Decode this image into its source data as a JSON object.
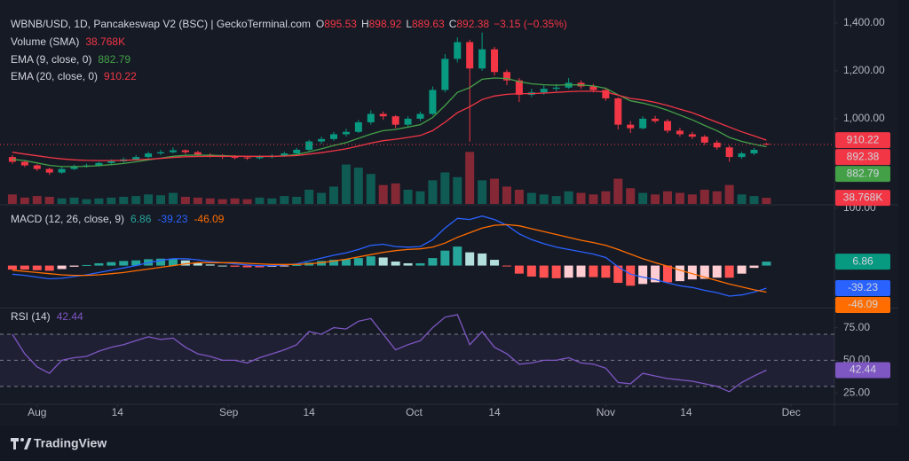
{
  "chart_data": {
    "type": "candlestick",
    "title": "WBNB/USD, 1D, Pancakeswap V2 (BSC) | GeckoTerminal.com",
    "ohlc_keys": [
      "O",
      "H",
      "L",
      "C"
    ],
    "change_label": "−3.15 (−0.35%)",
    "up_color": "#089981",
    "down_color": "#f23645",
    "x": [
      0,
      2,
      4,
      6,
      8,
      10,
      12,
      14,
      16,
      18,
      20,
      22,
      24,
      26,
      28,
      30,
      32,
      34,
      36,
      38,
      40,
      42,
      44,
      46,
      48,
      50,
      52,
      54,
      56,
      58,
      60,
      62,
      64,
      66,
      68,
      70,
      72,
      74,
      76,
      78,
      80,
      82,
      84,
      86,
      88,
      90,
      92,
      94,
      96,
      98,
      100,
      102,
      104,
      106,
      108,
      110,
      112,
      114,
      116,
      118,
      120,
      122
    ],
    "xlim": [
      -2,
      133
    ],
    "xticks": [
      {
        "value": 4,
        "label": "Aug"
      },
      {
        "value": 17,
        "label": "14"
      },
      {
        "value": 35,
        "label": "Sep"
      },
      {
        "value": 48,
        "label": "14"
      },
      {
        "value": 65,
        "label": "Oct"
      },
      {
        "value": 78,
        "label": "14"
      },
      {
        "value": 96,
        "label": "Nov"
      },
      {
        "value": 109,
        "label": "14"
      },
      {
        "value": 126,
        "label": "Dec"
      }
    ],
    "ylim": [
      644,
      1496
    ],
    "yticks": [
      {
        "value": 1400,
        "label": "1,400.00"
      },
      {
        "value": 1200,
        "label": "1,200.00"
      },
      {
        "value": 1000,
        "label": "1,000.00"
      }
    ],
    "ohlc": [
      [
        840,
        848,
        812,
        820
      ],
      [
        820,
        826,
        798,
        805
      ],
      [
        805,
        810,
        782,
        790
      ],
      [
        790,
        795,
        765,
        775
      ],
      [
        775,
        798,
        770,
        790
      ],
      [
        790,
        808,
        785,
        800
      ],
      [
        800,
        812,
        795,
        805
      ],
      [
        805,
        820,
        800,
        815
      ],
      [
        815,
        830,
        808,
        822
      ],
      [
        822,
        838,
        815,
        830
      ],
      [
        830,
        848,
        825,
        840
      ],
      [
        840,
        862,
        835,
        855
      ],
      [
        855,
        870,
        848,
        860
      ],
      [
        860,
        880,
        855,
        868
      ],
      [
        868,
        872,
        852,
        860
      ],
      [
        860,
        866,
        842,
        850
      ],
      [
        850,
        856,
        838,
        845
      ],
      [
        845,
        852,
        832,
        840
      ],
      [
        840,
        848,
        830,
        838
      ],
      [
        838,
        845,
        828,
        835
      ],
      [
        835,
        848,
        830,
        840
      ],
      [
        840,
        852,
        835,
        845
      ],
      [
        845,
        862,
        840,
        855
      ],
      [
        855,
        878,
        850,
        870
      ],
      [
        870,
        912,
        865,
        905
      ],
      [
        905,
        925,
        895,
        915
      ],
      [
        915,
        945,
        908,
        935
      ],
      [
        935,
        958,
        925,
        945
      ],
      [
        945,
        995,
        940,
        985
      ],
      [
        985,
        1035,
        975,
        1020
      ],
      [
        1020,
        1030,
        995,
        1010
      ],
      [
        1010,
        1015,
        960,
        975
      ],
      [
        975,
        1010,
        968,
        1000
      ],
      [
        1000,
        1030,
        990,
        1020
      ],
      [
        1020,
        1135,
        1015,
        1120
      ],
      [
        1120,
        1270,
        1110,
        1250
      ],
      [
        1250,
        1340,
        1235,
        1320
      ],
      [
        1320,
        1330,
        904,
        1210
      ],
      [
        1210,
        1360,
        1200,
        1290
      ],
      [
        1290,
        1300,
        1180,
        1195
      ],
      [
        1195,
        1205,
        1140,
        1160
      ],
      [
        1160,
        1170,
        1070,
        1100
      ],
      [
        1100,
        1125,
        1090,
        1110
      ],
      [
        1110,
        1140,
        1100,
        1125
      ],
      [
        1125,
        1145,
        1115,
        1130
      ],
      [
        1130,
        1170,
        1125,
        1150
      ],
      [
        1150,
        1160,
        1125,
        1135
      ],
      [
        1135,
        1145,
        1110,
        1120
      ],
      [
        1120,
        1130,
        1075,
        1085
      ],
      [
        1085,
        1090,
        955,
        975
      ],
      [
        975,
        990,
        940,
        960
      ],
      [
        960,
        1010,
        955,
        1000
      ],
      [
        1000,
        1012,
        982,
        990
      ],
      [
        990,
        998,
        940,
        950
      ],
      [
        950,
        962,
        925,
        935
      ],
      [
        935,
        945,
        915,
        925
      ],
      [
        925,
        932,
        890,
        900
      ],
      [
        900,
        910,
        870,
        880
      ],
      [
        880,
        888,
        820,
        840
      ],
      [
        840,
        862,
        832,
        855
      ],
      [
        855,
        878,
        848,
        870
      ],
      [
        895.53,
        898.92,
        889.63,
        892.38
      ]
    ],
    "volume": {
      "name": "Volume (SMA)",
      "ylim": [
        0,
        450000
      ],
      "values": [
        60000,
        40000,
        50000,
        45000,
        35000,
        40000,
        30000,
        35000,
        40000,
        45000,
        50000,
        60000,
        55000,
        70000,
        45000,
        40000,
        35000,
        30000,
        35000,
        30000,
        40000,
        35000,
        50000,
        45000,
        90000,
        70000,
        110000,
        250000,
        230000,
        190000,
        120000,
        130000,
        90000,
        80000,
        150000,
        200000,
        170000,
        330000,
        150000,
        160000,
        110000,
        90000,
        70000,
        60000,
        50000,
        80000,
        70000,
        60000,
        80000,
        160000,
        100000,
        70000,
        60000,
        80000,
        70000,
        60000,
        90000,
        80000,
        120000,
        60000,
        50000,
        38768
      ],
      "value_labels": {
        "61": "38.768K"
      }
    },
    "ema": [
      {
        "name": "EMA (9, close, 0)",
        "color": "#43a047",
        "values": [
          830,
          825,
          815,
          805,
          800,
          800,
          801,
          804,
          808,
          813,
          820,
          828,
          835,
          843,
          847,
          848,
          847,
          846,
          844,
          842,
          842,
          842,
          845,
          850,
          862,
          874,
          888,
          900,
          918,
          936,
          950,
          955,
          965,
          975,
          1005,
          1055,
          1110,
          1130,
          1165,
          1170,
          1168,
          1155,
          1146,
          1142,
          1140,
          1142,
          1141,
          1137,
          1127,
          1100,
          1075,
          1065,
          1052,
          1035,
          1015,
          995,
          972,
          950,
          922,
          905,
          893,
          882.79
        ]
      },
      {
        "name": "EMA (20, close, 0)",
        "color": "#f23645",
        "values": [
          860,
          852,
          845,
          838,
          832,
          828,
          826,
          825,
          825,
          826,
          828,
          831,
          834,
          838,
          841,
          842,
          843,
          843,
          843,
          843,
          843,
          843,
          844,
          846,
          852,
          858,
          866,
          874,
          886,
          898,
          908,
          914,
          922,
          930,
          950,
          985,
          1025,
          1050,
          1080,
          1095,
          1102,
          1105,
          1105,
          1107,
          1110,
          1113,
          1115,
          1115,
          1112,
          1098,
          1085,
          1078,
          1068,
          1055,
          1040,
          1025,
          1005,
          985,
          965,
          945,
          928,
          910.22
        ]
      }
    ],
    "macd": {
      "name": "MACD (12, 26, close, 9)",
      "ylim": [
        -73,
        104
      ],
      "yticks": [
        {
          "value": 100,
          "label": "100.00"
        }
      ],
      "histogram": [
        -7,
        -7,
        -8,
        -9,
        -6,
        -2,
        1,
        4,
        6,
        8,
        9,
        11,
        12,
        12,
        9,
        5,
        2,
        0,
        -2,
        -3,
        -3,
        -2,
        -1,
        1,
        5,
        8,
        10,
        11,
        13,
        16,
        14,
        7,
        4,
        4,
        13,
        26,
        33,
        23,
        21,
        10,
        -1,
        -14,
        -19,
        -21,
        -22,
        -21,
        -20,
        -20,
        -21,
        -30,
        -35,
        -32,
        -29,
        -29,
        -27,
        -24,
        -23,
        -21,
        -21,
        -14,
        -4,
        6.86
      ],
      "macd": {
        "color": "#2962ff",
        "values": [
          -15,
          -17,
          -20,
          -23,
          -22,
          -19,
          -16,
          -12,
          -8,
          -4,
          0,
          5,
          9,
          12,
          12,
          10,
          7,
          5,
          3,
          1,
          0,
          0,
          1,
          3,
          8,
          13,
          18,
          22,
          28,
          35,
          37,
          33,
          32,
          33,
          45,
          65,
          82,
          80,
          86,
          80,
          70,
          55,
          45,
          38,
          32,
          28,
          24,
          20,
          14,
          -2,
          -15,
          -20,
          -24,
          -30,
          -35,
          -38,
          -43,
          -47,
          -53,
          -51,
          -46,
          -39.23
        ]
      },
      "signal": {
        "color": "#ff6d00",
        "values": [
          -8,
          -10,
          -12,
          -14,
          -16,
          -17,
          -17,
          -16,
          -14,
          -12,
          -9,
          -6,
          -3,
          0,
          3,
          5,
          5,
          5,
          5,
          4,
          3,
          2,
          2,
          2,
          3,
          5,
          8,
          11,
          15,
          19,
          23,
          26,
          28,
          29,
          32,
          39,
          49,
          57,
          65,
          70,
          71,
          69,
          64,
          59,
          54,
          49,
          44,
          40,
          35,
          28,
          20,
          12,
          5,
          -1,
          -8,
          -14,
          -20,
          -26,
          -32,
          -37,
          -42,
          -46.09
        ]
      }
    },
    "rsi": {
      "name": "RSI (14)",
      "color": "#7e57c2",
      "ylim": [
        17,
        89
      ],
      "levels": [
        70,
        50,
        30
      ],
      "yticks": [
        {
          "value": 75,
          "label": "75.00"
        },
        {
          "value": 50,
          "label": "50.00"
        },
        {
          "value": 25,
          "label": "25.00"
        }
      ],
      "values": [
        70,
        55,
        45,
        40,
        50,
        52,
        53,
        57,
        60,
        62,
        65,
        68,
        66,
        67,
        60,
        55,
        53,
        50,
        50,
        48,
        52,
        55,
        58,
        62,
        72,
        70,
        75,
        74,
        80,
        82,
        70,
        58,
        62,
        65,
        75,
        83,
        85,
        62,
        72,
        60,
        55,
        47,
        48,
        50,
        50,
        52,
        48,
        47,
        44,
        33,
        32,
        40,
        38,
        36,
        35,
        34,
        32,
        30,
        26,
        33,
        38,
        42.44
      ]
    }
  },
  "footer": "TradingView"
}
